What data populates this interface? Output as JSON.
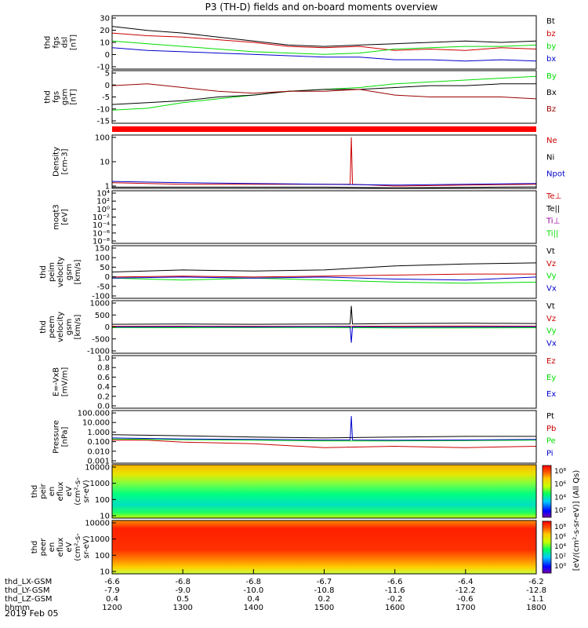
{
  "title": "P3 (TH-D) fields and on-board moments overview",
  "date_label": "2019 Feb 05",
  "colors": {
    "black": "#000000",
    "red": "#cc0000",
    "darkred": "#990000",
    "green": "#00dd00",
    "blue": "#0000cc",
    "purple": "#990099",
    "brightred": "#ff0000"
  },
  "chart_data": [
    {
      "type": "line",
      "panel": "fgs-dsl",
      "ylabel": [
        "thd",
        "fgs",
        "dsl",
        "[nT]"
      ],
      "ylim": [
        -10,
        30
      ],
      "yticks": [
        "30",
        "20",
        "10",
        "0",
        "-10"
      ],
      "series": [
        {
          "name": "Bt",
          "color": "#000000",
          "x": [
            1200,
            1230,
            1300,
            1330,
            1400,
            1430,
            1500,
            1530,
            1600,
            1630,
            1700,
            1730,
            1800
          ],
          "y": [
            22,
            19,
            17,
            14,
            11,
            8,
            7,
            8,
            9,
            10,
            11,
            10,
            11
          ]
        },
        {
          "name": "bz",
          "color": "#cc0000",
          "x": [
            1200,
            1230,
            1300,
            1330,
            1400,
            1430,
            1500,
            1530,
            1600,
            1630,
            1700,
            1730,
            1800
          ],
          "y": [
            17,
            15,
            14,
            12,
            10,
            7,
            6,
            7,
            4,
            5,
            4,
            6,
            5
          ]
        },
        {
          "name": "by",
          "color": "#00dd00",
          "x": [
            1200,
            1230,
            1300,
            1330,
            1400,
            1430,
            1500,
            1530,
            1600,
            1630,
            1700,
            1730,
            1800
          ],
          "y": [
            11,
            9,
            7,
            5,
            3,
            2,
            1,
            2,
            5,
            6,
            7,
            7,
            8
          ]
        },
        {
          "name": "bx",
          "color": "#0000cc",
          "x": [
            1200,
            1230,
            1300,
            1330,
            1400,
            1430,
            1500,
            1530,
            1600,
            1630,
            1700,
            1730,
            1800
          ],
          "y": [
            6,
            4,
            3,
            2,
            1,
            0,
            -1,
            -1,
            -3,
            -3,
            -4,
            -3,
            -4
          ]
        }
      ]
    },
    {
      "type": "line",
      "panel": "fgs-gsm",
      "ylabel": [
        "thd",
        "fgs",
        "gsm",
        "[nT]"
      ],
      "ylim": [
        -18,
        10
      ],
      "yticks": [
        "5",
        "0",
        "-5",
        "-10",
        "-15"
      ],
      "series": [
        {
          "name": "By",
          "color": "#00dd00",
          "x": [
            1200,
            1230,
            1300,
            1330,
            1400,
            1430,
            1500,
            1530,
            1600,
            1630,
            1700,
            1730,
            1800
          ],
          "y": [
            -11,
            -10,
            -7,
            -5,
            -3,
            -1,
            0,
            1,
            3,
            4,
            5,
            6,
            7
          ]
        },
        {
          "name": "Bx",
          "color": "#000000",
          "x": [
            1200,
            1230,
            1300,
            1330,
            1400,
            1430,
            1500,
            1530,
            1600,
            1630,
            1700,
            1730,
            1800
          ],
          "y": [
            -8,
            -7,
            -6,
            -4,
            -3,
            -1,
            0,
            0,
            1,
            2,
            2,
            3,
            3
          ]
        },
        {
          "name": "Bz",
          "color": "#990000",
          "x": [
            1200,
            1230,
            1300,
            1330,
            1400,
            1430,
            1500,
            1530,
            1600,
            1630,
            1700,
            1730,
            1800
          ],
          "y": [
            2,
            3,
            1,
            -1,
            -2,
            -1,
            -1,
            0,
            -3,
            -4,
            -4,
            -4,
            -5
          ]
        }
      ]
    },
    {
      "type": "line",
      "panel": "density",
      "ylabel": [
        "Density",
        "[cm-3]"
      ],
      "yscale": "log",
      "ylim": [
        0.3,
        200
      ],
      "yticks": [
        "100",
        "10",
        "1"
      ],
      "series": [
        {
          "name": "Ne",
          "color": "#cc0000",
          "x": [
            1200,
            1300,
            1400,
            1500,
            1522,
            1523,
            1524,
            1600,
            1700,
            1800
          ],
          "y": [
            0.6,
            0.5,
            0.5,
            0.5,
            0.5,
            150,
            0.5,
            0.4,
            0.45,
            0.5
          ]
        },
        {
          "name": "Ni",
          "color": "#000000",
          "x": [
            1200,
            1300,
            1400,
            1500,
            1600,
            1700,
            1800
          ],
          "y": [
            0.35,
            0.35,
            0.35,
            0.35,
            0.32,
            0.34,
            0.36
          ]
        },
        {
          "name": "Npot",
          "color": "#0000cc",
          "x": [
            1200,
            1300,
            1400,
            1500,
            1600,
            1700,
            1800
          ],
          "y": [
            0.7,
            0.6,
            0.55,
            0.5,
            0.45,
            0.5,
            0.55
          ]
        }
      ]
    },
    {
      "type": "line",
      "panel": "temperature",
      "ylabel": [
        "moqt3",
        "[eV]"
      ],
      "yticks": [
        "10⁴",
        "10²",
        "10⁰",
        "10⁻²",
        "10⁻⁴",
        "10⁻⁶",
        "10⁻⁸"
      ],
      "series": [
        {
          "name": "Te⊥",
          "color": "#cc0000"
        },
        {
          "name": "Te||",
          "color": "#000000"
        },
        {
          "name": "Ti⊥",
          "color": "#990099"
        },
        {
          "name": "Ti||",
          "color": "#00dd00"
        }
      ]
    },
    {
      "type": "line",
      "panel": "peim-velocity",
      "ylabel": [
        "thd",
        "peim",
        "velocity",
        "gsm",
        "[km/s]"
      ],
      "ylim": [
        -100,
        160
      ],
      "yticks": [
        "150",
        "100",
        "50",
        "0",
        "-50",
        "-100"
      ],
      "series": [
        {
          "name": "Vt",
          "color": "#000000",
          "x": [
            1200,
            1300,
            1400,
            1500,
            1600,
            1700,
            1800
          ],
          "y": [
            30,
            40,
            35,
            40,
            60,
            70,
            75
          ]
        },
        {
          "name": "Vz",
          "color": "#cc0000",
          "x": [
            1200,
            1300,
            1400,
            1500,
            1600,
            1700,
            1800
          ],
          "y": [
            5,
            10,
            5,
            10,
            15,
            20,
            20
          ]
        },
        {
          "name": "Vy",
          "color": "#00dd00",
          "x": [
            1200,
            1300,
            1400,
            1500,
            1600,
            1700,
            1800
          ],
          "y": [
            0,
            -10,
            0,
            -10,
            -20,
            -25,
            -20
          ]
        },
        {
          "name": "Vx",
          "color": "#0000cc",
          "x": [
            1200,
            1300,
            1400,
            1500,
            1600,
            1700,
            1800
          ],
          "y": [
            0,
            5,
            0,
            5,
            -5,
            -10,
            5
          ]
        }
      ]
    },
    {
      "type": "line",
      "panel": "peem-velocity",
      "ylabel": [
        "thd",
        "peem",
        "velocity",
        "gsm",
        "[km/s]"
      ],
      "ylim": [
        -1000,
        1000
      ],
      "yticks": [
        "1000",
        "500",
        "0",
        "-500",
        "-1000"
      ],
      "series": [
        {
          "name": "Vt",
          "color": "#000000",
          "x": [
            1200,
            1300,
            1400,
            1500,
            1522,
            1523,
            1524,
            1600,
            1700,
            1800
          ],
          "y": [
            100,
            110,
            100,
            110,
            110,
            800,
            110,
            130,
            140,
            130
          ]
        },
        {
          "name": "Vz",
          "color": "#cc0000",
          "x": [
            1200,
            1300,
            1400,
            1500,
            1600,
            1700,
            1800
          ],
          "y": [
            20,
            30,
            20,
            25,
            30,
            35,
            30
          ]
        },
        {
          "name": "Vy",
          "color": "#00dd00",
          "x": [
            1200,
            1300,
            1400,
            1500,
            1600,
            1700,
            1800
          ],
          "y": [
            -20,
            -30,
            -20,
            -25,
            -40,
            -40,
            -30
          ]
        },
        {
          "name": "Vx",
          "color": "#0000cc",
          "x": [
            1200,
            1300,
            1400,
            1500,
            1522,
            1523,
            1524,
            1600,
            1700,
            1800
          ],
          "y": [
            0,
            10,
            0,
            10,
            10,
            -600,
            10,
            -10,
            0,
            10
          ]
        }
      ]
    },
    {
      "type": "line",
      "panel": "e-field",
      "ylabel": [
        "E=-VxB",
        "[mV/m]"
      ],
      "ylim": [
        0,
        1
      ],
      "yticks": [
        "1.0",
        "0.8",
        "0.6",
        "0.4",
        "0.2",
        "0.0"
      ],
      "series": [
        {
          "name": "Ez",
          "color": "#cc0000"
        },
        {
          "name": "Ey",
          "color": "#00dd00"
        },
        {
          "name": "Ex",
          "color": "#0000cc"
        }
      ]
    },
    {
      "type": "line",
      "panel": "pressure",
      "ylabel": [
        "Pressure",
        "[nPa]"
      ],
      "yscale": "log",
      "ylim": [
        0.001,
        100
      ],
      "yticks": [
        "100.000",
        "10.000",
        "1.000",
        "0.100",
        "0.010",
        "0.001"
      ],
      "series": [
        {
          "name": "Pt",
          "color": "#000000",
          "x": [
            1200,
            1300,
            1400,
            1500,
            1600,
            1700,
            1800
          ],
          "y": [
            0.5,
            0.4,
            0.3,
            0.25,
            0.3,
            0.35,
            0.35
          ]
        },
        {
          "name": "Pb",
          "color": "#cc0000",
          "x": [
            1200,
            1230,
            1300,
            1400,
            1500,
            1600,
            1700,
            1800
          ],
          "y": [
            0.15,
            0.15,
            0.1,
            0.07,
            0.03,
            0.04,
            0.03,
            0.04
          ]
        },
        {
          "name": "Pe",
          "color": "#00dd00",
          "x": [
            1200,
            1300,
            1400,
            1500,
            1600,
            1700,
            1800
          ],
          "y": [
            0.2,
            0.17,
            0.15,
            0.13,
            0.13,
            0.14,
            0.15
          ]
        },
        {
          "name": "Pi",
          "color": "#0000cc",
          "x": [
            1200,
            1300,
            1400,
            1500,
            1522,
            1523,
            1524,
            1600,
            1700,
            1800
          ],
          "y": [
            0.25,
            0.2,
            0.18,
            0.16,
            0.16,
            30,
            0.16,
            0.15,
            0.16,
            0.18
          ]
        }
      ]
    },
    {
      "type": "heatmap",
      "panel": "peir",
      "ylabel": [
        "thd",
        "peir",
        "en",
        "eflux",
        "eV",
        "(cm²-s-",
        "sr-eV)"
      ],
      "yscale": "log",
      "ylim": [
        7,
        20000
      ],
      "yticks": [
        "10000",
        "1000",
        "100",
        "10"
      ],
      "dominant_level": "green-cyan, yellow/orange at top"
    },
    {
      "type": "heatmap",
      "panel": "peer",
      "ylabel": [
        "thd",
        "peer",
        "en",
        "eflux",
        "eV",
        "(cm²-s-",
        "sr-eV)"
      ],
      "yscale": "log",
      "ylim": [
        7,
        20000
      ],
      "yticks": [
        "10000",
        "1000",
        "100",
        "10"
      ],
      "dominant_level": "red/orange, yellow at bottom"
    }
  ],
  "colorbar": {
    "label": "[eV/(cm²-s-sr-eV)] (All Qs)",
    "peir_ticks": [
      "10⁸",
      "10⁶",
      "10⁴",
      "10²"
    ],
    "peer_ticks": [
      "10⁸",
      "10⁶",
      "10⁴",
      "10²",
      "10⁰"
    ]
  },
  "xaxis": {
    "rows": [
      {
        "label": "thd_LX-GSM",
        "values": [
          "-6.6",
          "-6.8",
          "-6.8",
          "-6.7",
          "-6.6",
          "-6.4",
          "-6.2"
        ]
      },
      {
        "label": "thd_LY-GSM",
        "values": [
          "-7.9",
          "-9.0",
          "-10.0",
          "-10.8",
          "-11.6",
          "-12.2",
          "-12.8"
        ]
      },
      {
        "label": "thd_LZ-GSM",
        "values": [
          "0.4",
          "0.5",
          "0.4",
          "0.2",
          "-0.2",
          "-0.6",
          "-1.1"
        ]
      },
      {
        "label": "hhmm",
        "values": [
          "1200",
          "1300",
          "1400",
          "1500",
          "1600",
          "1700",
          "1800"
        ]
      }
    ]
  }
}
